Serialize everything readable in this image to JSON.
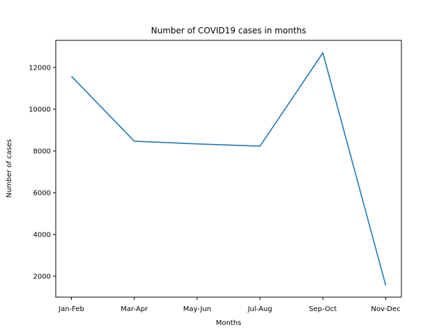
{
  "chart_data": {
    "type": "line",
    "title": "Number of COVID19 cases in months",
    "xlabel": "Months",
    "ylabel": "Number of cases",
    "categories": [
      "Jan-Feb",
      "Mar-Apr",
      "May-Jun",
      "Jul-Aug",
      "Sep-Oct",
      "Nov-Dec"
    ],
    "series": [
      {
        "values": [
          11580,
          8470,
          8340,
          8230,
          12700,
          1560
        ]
      }
    ],
    "ylim": [
      1000,
      13300
    ],
    "yticks": [
      2000,
      4000,
      6000,
      8000,
      10000,
      12000
    ],
    "ytick_labels": [
      "2000",
      "4000",
      "6000",
      "8000",
      "10000",
      "12000"
    ],
    "grid": false,
    "colors": {
      "line": "#1f77b4",
      "axes": "#000000",
      "background": "#ffffff"
    }
  }
}
